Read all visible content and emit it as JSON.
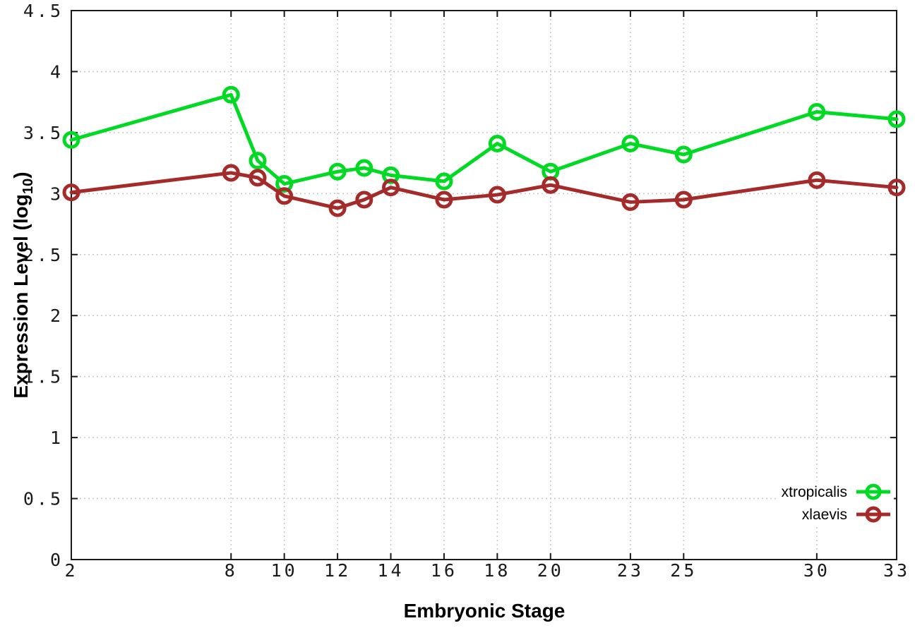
{
  "chart_data": {
    "type": "line",
    "x": [
      2,
      8,
      9,
      10,
      12,
      13,
      14,
      16,
      18,
      20,
      23,
      25,
      30,
      33
    ],
    "x_tick_labels": [
      "2",
      "8",
      "10",
      "12",
      "14",
      "16",
      "18",
      "20",
      "23",
      "25",
      "30",
      "33"
    ],
    "x_ticks": [
      2,
      8,
      10,
      12,
      14,
      16,
      18,
      20,
      23,
      25,
      30,
      33
    ],
    "xlim": [
      2,
      33
    ],
    "ylim": [
      0,
      4.5
    ],
    "y_tick_step": 0.5,
    "y_tick_labels": [
      "0",
      "0.5",
      "1",
      "1.5",
      "2",
      "2.5",
      "3",
      "3.5",
      "4",
      "4.5"
    ],
    "grid": true,
    "xlabel": "Embryonic Stage",
    "ylabel": "Expression Level (log10)",
    "ylabel_parts": {
      "prefix": "Expression Level (log",
      "subscript": "10",
      "suffix": ")"
    },
    "legend_position": "bottom-right",
    "series": [
      {
        "name": "xtropicalis",
        "color": "#00da23",
        "marker": "open-circle",
        "values": [
          3.44,
          3.81,
          3.27,
          3.08,
          3.18,
          3.21,
          3.15,
          3.1,
          3.41,
          3.18,
          3.41,
          3.32,
          3.67,
          3.61
        ]
      },
      {
        "name": "xlaevis",
        "color": "#a52a2a",
        "marker": "open-circle",
        "values": [
          3.01,
          3.17,
          3.13,
          2.98,
          2.88,
          2.95,
          3.05,
          2.95,
          2.99,
          3.07,
          2.93,
          2.95,
          3.11,
          3.05
        ]
      }
    ]
  },
  "style_colors": {
    "background": "#ffffff",
    "axis": "#1a1a1a",
    "grid": "#c8c8c8",
    "tick_text": "#1a1a1a"
  }
}
